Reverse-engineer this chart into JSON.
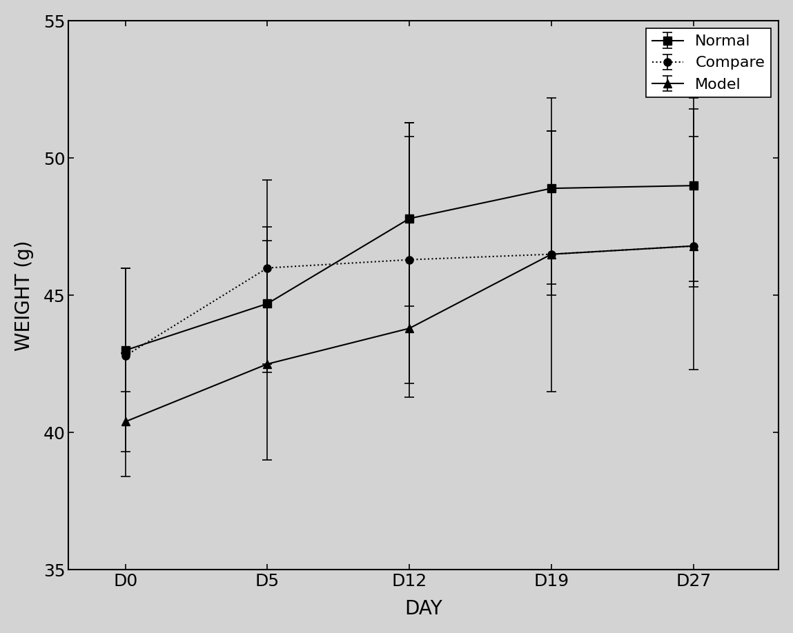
{
  "x_labels": [
    "D0",
    "D5",
    "D12",
    "D19",
    "D27"
  ],
  "x_positions": [
    0,
    1,
    2,
    3,
    4
  ],
  "normal_y": [
    43.0,
    44.7,
    47.8,
    48.9,
    49.0
  ],
  "normal_yerr_low": [
    1.5,
    2.5,
    3.2,
    3.5,
    3.5
  ],
  "normal_yerr_high": [
    3.0,
    4.5,
    3.5,
    3.3,
    3.2
  ],
  "compare_y": [
    42.8,
    46.0,
    46.3,
    46.5,
    46.8
  ],
  "compare_yerr_low": [
    3.5,
    3.5,
    4.5,
    5.0,
    4.5
  ],
  "compare_yerr_high": [
    3.2,
    1.5,
    4.5,
    4.5,
    4.0
  ],
  "model_y": [
    40.4,
    42.5,
    43.8,
    46.5,
    46.8
  ],
  "model_yerr_low": [
    2.0,
    3.5,
    2.5,
    1.5,
    1.5
  ],
  "model_yerr_high": [
    2.5,
    4.5,
    7.5,
    4.5,
    5.0
  ],
  "ylim": [
    35,
    55
  ],
  "yticks": [
    35,
    40,
    45,
    50,
    55
  ],
  "ylabel": "WEIGHT (g)",
  "xlabel": "DAY",
  "legend_labels": [
    "Normal",
    "Compare",
    "Model"
  ],
  "line_color": "#000000",
  "normal_linestyle": "-",
  "compare_linestyle": "dotted",
  "model_linestyle": "-",
  "normal_marker": "s",
  "compare_marker": "o",
  "model_marker": "^",
  "markersize": 8,
  "linewidth": 1.5,
  "label_fontsize": 20,
  "tick_fontsize": 18,
  "legend_fontsize": 16,
  "background_color": "#d3d3d3",
  "axes_facecolor": "#d3d3d3"
}
